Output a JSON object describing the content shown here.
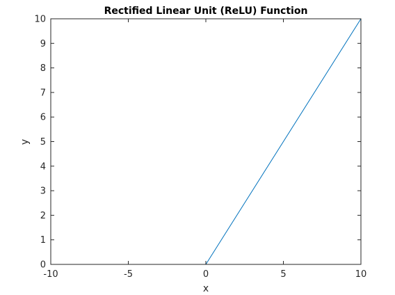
{
  "chart_data": {
    "type": "line",
    "title": "Rectified Linear Unit (ReLU) Function",
    "xlabel": "x",
    "ylabel": "y",
    "xlim": [
      -10,
      10
    ],
    "ylim": [
      0,
      10
    ],
    "xticks": [
      -10,
      -5,
      0,
      5,
      10
    ],
    "yticks": [
      0,
      1,
      2,
      3,
      4,
      5,
      6,
      7,
      8,
      9,
      10
    ],
    "grid": false,
    "legend": "none",
    "series": [
      {
        "x": [
          -10,
          0,
          10
        ],
        "y": [
          0,
          0,
          10
        ],
        "color": "#0072bd"
      }
    ]
  }
}
